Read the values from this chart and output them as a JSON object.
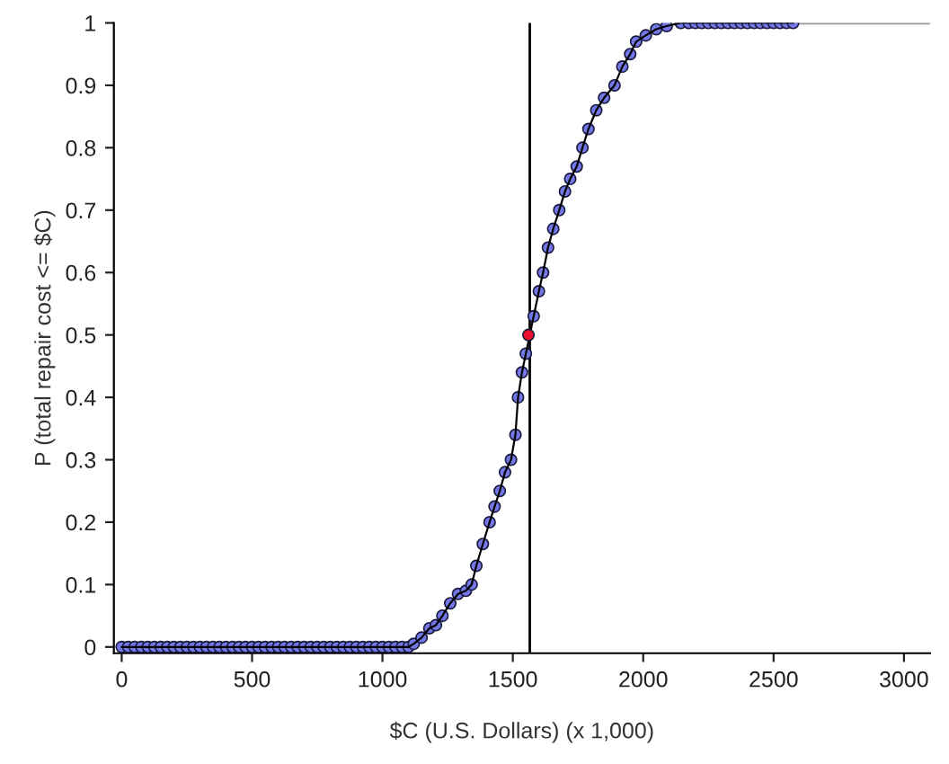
{
  "chart_data": {
    "type": "line",
    "xlabel": "$C (U.S. Dollars) (x 1,000)",
    "ylabel": "P (total repair cost <= $C)",
    "xlim": [
      -30,
      3100
    ],
    "ylim": [
      -0.01,
      1.0
    ],
    "xticks": [
      0,
      500,
      1000,
      1500,
      2000,
      2500,
      3000
    ],
    "yticks": [
      0,
      0.1,
      0.2,
      0.3,
      0.4,
      0.5,
      0.6,
      0.7,
      0.8,
      0.9,
      1
    ],
    "marker": "circle",
    "grid": false,
    "series": [
      {
        "color": "#7478e6",
        "x": [
          0,
          25,
          50,
          75,
          100,
          125,
          150,
          175,
          200,
          225,
          250,
          275,
          300,
          325,
          350,
          375,
          400,
          425,
          450,
          475,
          500,
          525,
          550,
          575,
          600,
          625,
          650,
          675,
          700,
          725,
          750,
          775,
          800,
          825,
          850,
          875,
          900,
          925,
          950,
          975,
          1000,
          1025,
          1050,
          1075,
          1100,
          1120,
          1150,
          1180,
          1205,
          1230,
          1260,
          1290,
          1320,
          1342,
          1360,
          1385,
          1411,
          1430,
          1450,
          1470,
          1493,
          1510,
          1520,
          1535,
          1550,
          1580,
          1600,
          1616,
          1635,
          1655,
          1678,
          1700,
          1720,
          1745,
          1767,
          1790,
          1820,
          1850,
          1890,
          1920,
          1950,
          1973,
          2010,
          2050,
          2090,
          2144,
          2175,
          2200,
          2225,
          2250,
          2275,
          2300,
          2325,
          2350,
          2375,
          2400,
          2425,
          2450,
          2475,
          2500,
          2525,
          2550,
          2575
        ],
        "values": [
          0,
          0,
          0,
          0,
          0,
          0,
          0,
          0,
          0,
          0,
          0,
          0,
          0,
          0,
          0,
          0,
          0,
          0,
          0,
          0,
          0,
          0,
          0,
          0,
          0,
          0,
          0,
          0,
          0,
          0,
          0,
          0,
          0,
          0,
          0,
          0,
          0,
          0,
          0,
          0,
          0,
          0,
          0,
          0,
          0,
          0.005,
          0.015,
          0.03,
          0.035,
          0.05,
          0.07,
          0.085,
          0.09,
          0.1,
          0.13,
          0.165,
          0.2,
          0.225,
          0.25,
          0.28,
          0.3,
          0.34,
          0.4,
          0.44,
          0.47,
          0.53,
          0.57,
          0.6,
          0.64,
          0.67,
          0.7,
          0.73,
          0.75,
          0.77,
          0.8,
          0.83,
          0.86,
          0.88,
          0.9,
          0.93,
          0.95,
          0.97,
          0.98,
          0.99,
          0.995,
          1,
          1,
          1,
          1,
          1,
          1,
          1,
          1,
          1,
          1,
          1,
          1,
          1,
          1,
          1,
          1,
          1,
          1
        ]
      },
      {
        "type": "scatter",
        "color": "#e8102a",
        "x": [
          1560
        ],
        "values": [
          0.5
        ]
      },
      {
        "type": "line",
        "color": "#999999",
        "marker": "none",
        "x": [
          2575,
          3100
        ],
        "values": [
          1,
          1
        ]
      }
    ],
    "ref_lines": [
      {
        "axis": "x",
        "value": 1565,
        "color": "#000000"
      }
    ]
  }
}
